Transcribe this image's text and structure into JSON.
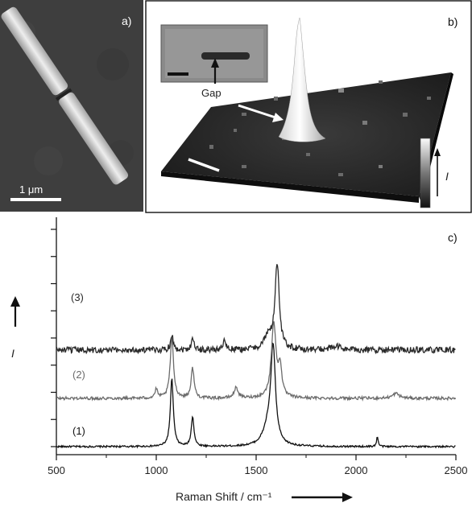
{
  "panels": {
    "a": {
      "label": "a)",
      "scale_bar_text": "1 μm"
    },
    "b": {
      "label": "b)",
      "inset_text": "Gap",
      "colorbar_label": "I"
    },
    "c": {
      "label": "c)"
    }
  },
  "chart_data": {
    "type": "line",
    "xlabel": "Raman Shift / cm⁻¹",
    "ylabel": "I",
    "xlim": [
      500,
      2500
    ],
    "xticks": [
      500,
      1000,
      1500,
      2000,
      2500
    ],
    "xtick_labels": [
      "500",
      "1000",
      "1500",
      "2000",
      "2500"
    ],
    "yticks_count": 9,
    "grid": false,
    "series": [
      {
        "name": "(1)",
        "color": "#111111",
        "offset": 0,
        "noise": 0.018,
        "peaks": [
          [
            1078,
            1.4,
            9
          ],
          [
            1182,
            0.62,
            8
          ],
          [
            1585,
            1.95,
            14
          ],
          [
            1560,
            0.35,
            30
          ],
          [
            2107,
            0.2,
            5
          ]
        ]
      },
      {
        "name": "(2)",
        "color": "#6b6b6b",
        "offset": 1.0,
        "noise": 0.03,
        "peaks": [
          [
            1078,
            1.25,
            10
          ],
          [
            1182,
            0.62,
            9
          ],
          [
            1000,
            0.18,
            8
          ],
          [
            1400,
            0.22,
            12
          ],
          [
            1588,
            1.55,
            14
          ],
          [
            1620,
            0.6,
            10
          ],
          [
            2200,
            0.1,
            20
          ]
        ]
      },
      {
        "name": "(3)",
        "color": "#2a2a2a",
        "offset": 2.0,
        "noise": 0.065,
        "peaks": [
          [
            1078,
            0.32,
            8
          ],
          [
            1182,
            0.25,
            8
          ],
          [
            1340,
            0.18,
            10
          ],
          [
            1605,
            1.75,
            13
          ],
          [
            1560,
            0.25,
            25
          ],
          [
            1900,
            0.07,
            30
          ]
        ]
      }
    ]
  }
}
